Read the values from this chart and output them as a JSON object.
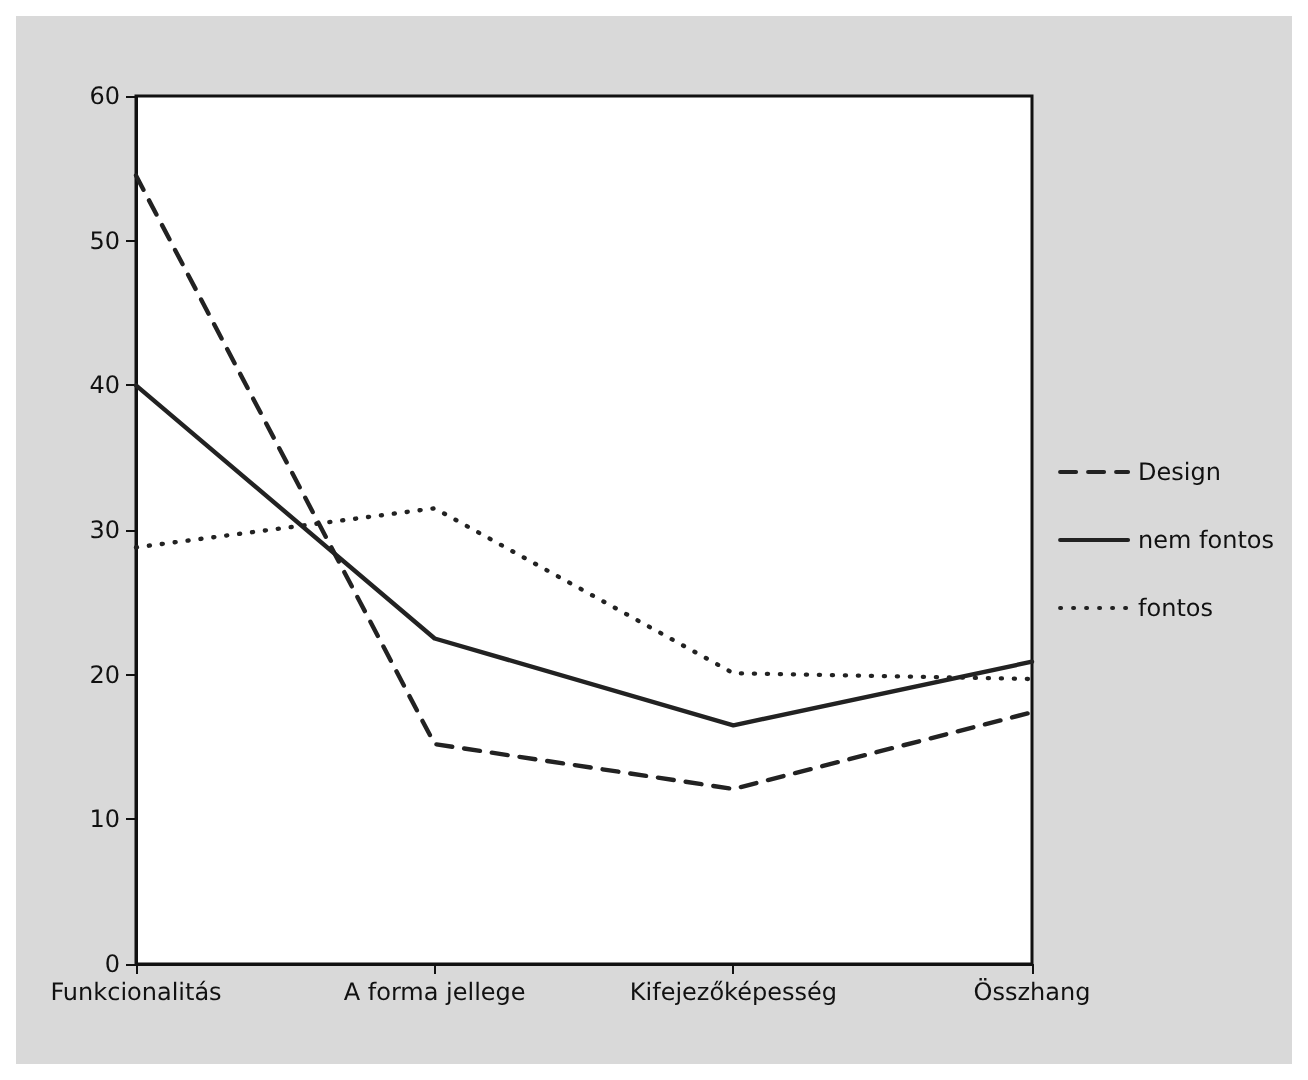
{
  "chart_data": {
    "type": "line",
    "categories": [
      "Funkcionalitás",
      "A forma jellege",
      "Kifejezőképesség",
      "Összhang"
    ],
    "series": [
      {
        "name": "Design",
        "color": "#222222",
        "line_style": "dashed",
        "values": [
          54.5,
          15.2,
          12.1,
          17.4
        ]
      },
      {
        "name": "nem fontos",
        "color": "#222222",
        "line_style": "solid",
        "values": [
          40,
          22.5,
          16.5,
          20.9
        ]
      },
      {
        "name": "fontos",
        "color": "#222222",
        "line_style": "dotted",
        "values": [
          28.8,
          31.5,
          20.1,
          19.7
        ]
      }
    ],
    "ylim": [
      0,
      60
    ],
    "yticks": [
      0,
      10,
      20,
      30,
      40,
      50,
      60
    ],
    "grid": false,
    "legend": "right",
    "marker": "none"
  }
}
